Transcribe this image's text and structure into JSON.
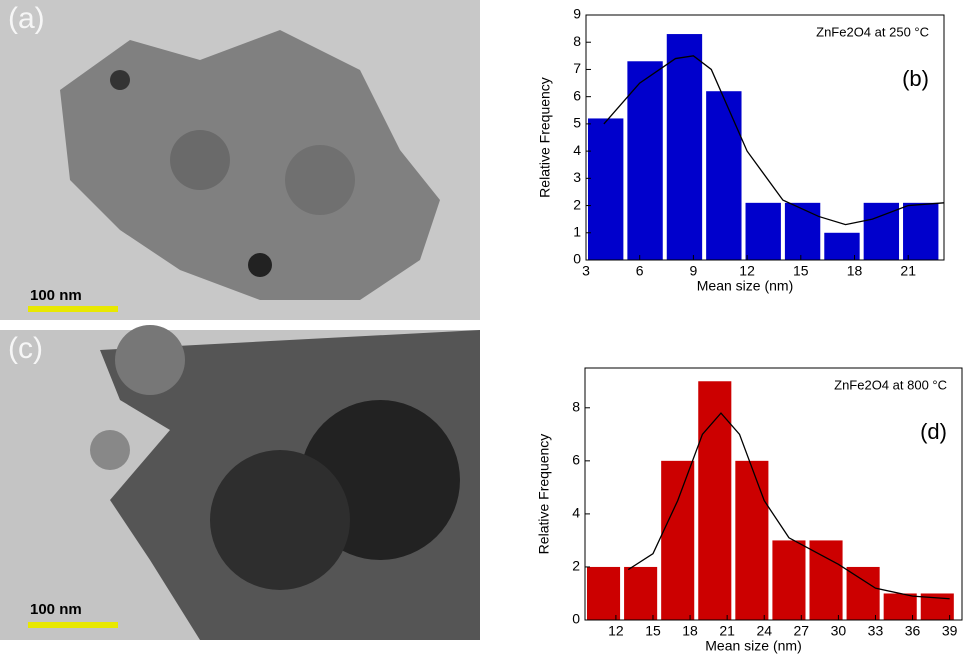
{
  "images": [
    {
      "label": "(a)",
      "scale_bar": "100 nm"
    },
    {
      "label": "(c)",
      "scale_bar": "100 nm"
    }
  ],
  "chart_data": [
    {
      "type": "histogram",
      "panel": "(b)",
      "annotation": "ZnFe2O4 at 250 °C",
      "x_label": "Mean size (nm)",
      "y_label": "Relative Frequency",
      "color": "#0000cc",
      "bins": [
        3,
        5.2,
        7.4,
        9.6,
        11.8,
        14,
        16.2,
        18.4,
        20.6,
        22.8
      ],
      "values": [
        5.2,
        7.3,
        8.3,
        6.2,
        2.1,
        2.1,
        1.0,
        2.1,
        2.1
      ],
      "xlim": [
        3,
        23
      ],
      "ylim": [
        0,
        9
      ],
      "xticks": [
        3,
        6,
        9,
        12,
        15,
        18,
        21
      ],
      "yticks": [
        0,
        1,
        2,
        3,
        4,
        5,
        6,
        7,
        8,
        9
      ],
      "curve": {
        "x": [
          4,
          6,
          8,
          9,
          10,
          12,
          14,
          16,
          17.5,
          19,
          21,
          23
        ],
        "y": [
          5,
          6.5,
          7.4,
          7.5,
          7,
          4,
          2.2,
          1.6,
          1.3,
          1.5,
          2,
          2.1
        ]
      }
    },
    {
      "type": "histogram",
      "panel": "(d)",
      "annotation": "ZnFe2O4 at 800 °C",
      "x_label": "Mean size (nm)",
      "y_label": "Relative Frequency",
      "color": "#cc0000",
      "bins": [
        9.5,
        12.5,
        15.5,
        18.5,
        21.5,
        24.5,
        27.5,
        30.5,
        33.5,
        36.5,
        39.5
      ],
      "values": [
        2,
        2,
        6,
        9,
        6,
        3,
        3,
        2,
        1,
        1
      ],
      "xlim": [
        9.5,
        40
      ],
      "ylim": [
        0,
        9.5
      ],
      "xticks": [
        12,
        15,
        18,
        21,
        24,
        27,
        30,
        33,
        36,
        39
      ],
      "yticks": [
        0,
        2,
        4,
        6,
        8
      ],
      "curve": {
        "x": [
          13,
          15,
          17,
          19,
          20.5,
          22,
          24,
          26,
          28,
          30,
          33,
          36,
          39
        ],
        "y": [
          1.9,
          2.5,
          4.5,
          7,
          7.8,
          7,
          4.5,
          3.1,
          2.6,
          2.1,
          1.2,
          0.9,
          0.8
        ]
      }
    }
  ]
}
